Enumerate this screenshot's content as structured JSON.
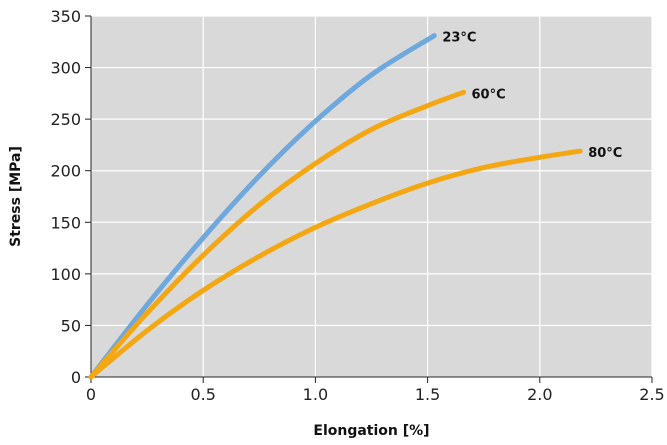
{
  "chart_data": {
    "type": "line",
    "title": "",
    "xlabel": "Elongation [%]",
    "ylabel": "Stress [MPa]",
    "xlim": [
      0,
      2.5
    ],
    "ylim": [
      0,
      350
    ],
    "xticks": [
      0,
      0.5,
      1.0,
      1.5,
      2.0,
      2.5
    ],
    "xtick_labels": [
      "0",
      "0.5",
      "1.0",
      "1.5",
      "2.0",
      "2.5"
    ],
    "yticks": [
      0,
      50,
      100,
      150,
      200,
      250,
      300,
      350
    ],
    "ytick_labels": [
      "0",
      "50",
      "100",
      "150",
      "200",
      "250",
      "300",
      "350"
    ],
    "grid": true,
    "legend": "none",
    "background": "#d9d9d9",
    "series": [
      {
        "name": "23°C",
        "color": "#6fa8dc",
        "x": [
          0,
          0.25,
          0.5,
          0.75,
          1.0,
          1.25,
          1.53
        ],
        "y": [
          0,
          70,
          135,
          195,
          248,
          293,
          331
        ]
      },
      {
        "name": "60°C",
        "color": "#f3a712",
        "x": [
          0,
          0.25,
          0.5,
          0.75,
          1.0,
          1.25,
          1.5,
          1.66
        ],
        "y": [
          0,
          62,
          118,
          167,
          207,
          240,
          263,
          276
        ]
      },
      {
        "name": "80°C",
        "color": "#f3a712",
        "x": [
          0,
          0.25,
          0.5,
          0.75,
          1.0,
          1.25,
          1.5,
          1.75,
          2.0,
          2.18
        ],
        "y": [
          0,
          45,
          84,
          117,
          145,
          168,
          188,
          203,
          213,
          219
        ]
      }
    ]
  }
}
